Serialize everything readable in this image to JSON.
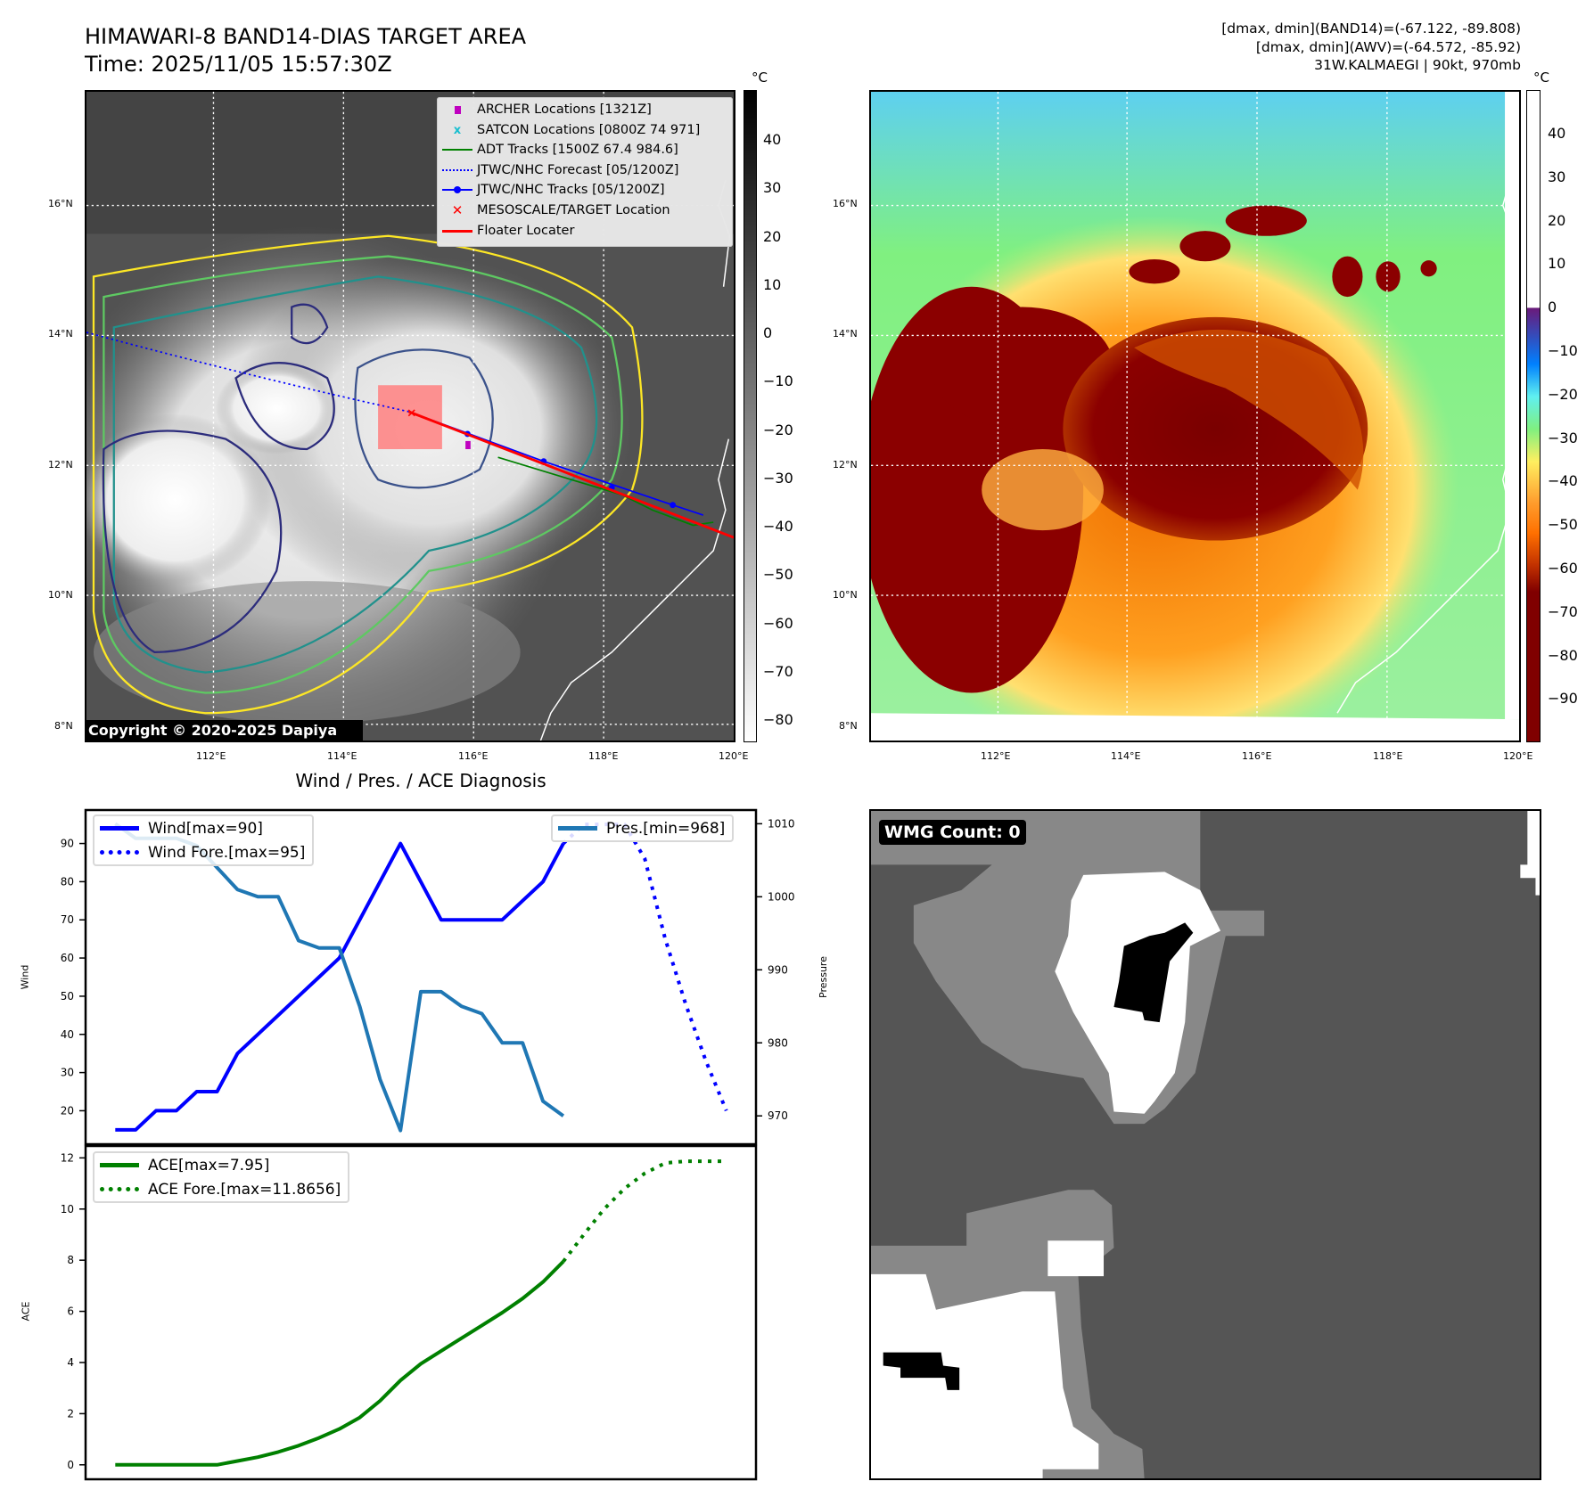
{
  "header": {
    "title": "HIMAWARI-8 BAND14-DIAS TARGET AREA",
    "time": "Time: 2025/11/05 15:57:30Z"
  },
  "info": {
    "line1": "[dmax, dmin](BAND14)=(-67.122, -89.808)",
    "line2": "[dmax, dmin](AWV)=(-64.572, -85.92)",
    "line3": "31W.KALMAEGI | 90kt, 970mb"
  },
  "left_map": {
    "legend": [
      {
        "label": "ARCHER Locations [1321Z]",
        "icon": "square-marker",
        "color": "#bf00bf"
      },
      {
        "label": "SATCON Locations [0800Z 74 971]",
        "icon": "x-marker",
        "color": "#17becf"
      },
      {
        "label": "ADT Tracks [1500Z 67.4 984.6]",
        "icon": "line",
        "color": "#008000"
      },
      {
        "label": "JTWC/NHC Forecast [05/1200Z]",
        "icon": "dotted-line",
        "color": "#0000ff"
      },
      {
        "label": "JTWC/NHC Tracks [05/1200Z]",
        "icon": "line-dot",
        "color": "#0000ff"
      },
      {
        "label": "MESOSCALE/TARGET Location",
        "icon": "x-marker",
        "color": "#ff0000"
      },
      {
        "label": "Floater Locater",
        "icon": "line",
        "color": "#ff0000"
      }
    ],
    "lat_labels": [
      "16°N",
      "14°N",
      "12°N",
      "10°N",
      "8°N"
    ],
    "lon_labels": [
      "112°E",
      "114°E",
      "116°E",
      "118°E",
      "120°E"
    ],
    "colorbar": {
      "unit": "°C",
      "ticks": [
        "40",
        "30",
        "20",
        "10",
        "0",
        "−10",
        "−20",
        "−30",
        "−40",
        "−50",
        "−60",
        "−70",
        "−80"
      ]
    },
    "copyright": "Copyright © 2020-2025 Dapiya"
  },
  "right_map": {
    "lat_labels": [
      "16°N",
      "14°N",
      "12°N",
      "10°N",
      "8°N"
    ],
    "lon_labels": [
      "112°E",
      "114°E",
      "116°E",
      "118°E",
      "120°E"
    ],
    "colorbar": {
      "unit": "°C",
      "ticks": [
        "40",
        "30",
        "20",
        "10",
        "0",
        "−10",
        "−20",
        "−30",
        "−40",
        "−50",
        "−60",
        "−70",
        "−80",
        "−90"
      ]
    }
  },
  "diagnosis": {
    "title": "Wind / Pres. / ACE Diagnosis"
  },
  "wmg": {
    "label": "WMG Count: 0"
  },
  "chart_data": [
    {
      "type": "line",
      "title": "Wind / Pres. / ACE Diagnosis",
      "ylabel": "Wind",
      "y2label": "Pressure",
      "xlim": [
        -1.5,
        31.5
      ],
      "ylim": [
        11,
        99
      ],
      "y2lim": [
        966,
        1012
      ],
      "yticks": [
        20,
        30,
        40,
        50,
        60,
        70,
        80,
        90
      ],
      "y2ticks": [
        970,
        980,
        990,
        1000,
        1010
      ],
      "legend_left": [
        "Wind[max=90]",
        "Wind Fore.[max=95]"
      ],
      "legend_right": [
        "Pres.[min=968]"
      ],
      "series": [
        {
          "name": "Wind[max=90]",
          "axis": "left",
          "style": "solid",
          "color": "#0000ff",
          "x": [
            0,
            1,
            2,
            3,
            4,
            5,
            6,
            7,
            8,
            9,
            10,
            11,
            12,
            13,
            14,
            15,
            16,
            17,
            18,
            19,
            20,
            21,
            22
          ],
          "values": [
            15,
            15,
            20,
            20,
            25,
            25,
            35,
            40,
            45,
            50,
            55,
            60,
            70,
            80,
            90,
            80,
            70,
            70,
            70,
            70,
            75,
            80,
            90
          ]
        },
        {
          "name": "Wind Fore.[max=95]",
          "axis": "left",
          "style": "dotted",
          "color": "#0000ff",
          "x": [
            22,
            23,
            24,
            25,
            26,
            27,
            28,
            29,
            30
          ],
          "values": [
            90,
            95,
            95,
            95,
            86,
            65,
            48,
            33,
            20
          ]
        },
        {
          "name": "Pres.[min=968]",
          "axis": "right",
          "style": "solid",
          "color": "#1f77b4",
          "x": [
            0,
            1,
            2,
            3,
            4,
            5,
            6,
            7,
            8,
            9,
            10,
            11,
            12,
            13,
            14,
            15,
            16,
            17,
            18,
            19,
            20,
            21,
            22
          ],
          "values": [
            1010,
            1008,
            1008,
            1008,
            1007,
            1004,
            1001,
            1000,
            1000,
            994,
            993,
            993,
            985,
            975,
            968,
            987,
            987,
            985,
            984,
            980,
            980,
            972,
            970
          ]
        }
      ]
    },
    {
      "type": "line",
      "ylabel": "ACE",
      "xlim": [
        -1.5,
        31.5
      ],
      "ylim": [
        -0.6,
        12.5
      ],
      "yticks": [
        0,
        2,
        4,
        6,
        8,
        10,
        12
      ],
      "legend": [
        "ACE[max=7.95]",
        "ACE Fore.[max=11.8656]"
      ],
      "series": [
        {
          "name": "ACE[max=7.95]",
          "style": "solid",
          "color": "#008000",
          "x": [
            0,
            1,
            2,
            3,
            4,
            5,
            6,
            7,
            8,
            9,
            10,
            11,
            12,
            13,
            14,
            15,
            16,
            17,
            18,
            19,
            20,
            21,
            22
          ],
          "values": [
            0,
            0,
            0,
            0,
            0,
            0,
            0.15,
            0.3,
            0.5,
            0.75,
            1.05,
            1.4,
            1.85,
            2.5,
            3.3,
            3.95,
            4.45,
            4.95,
            5.45,
            5.95,
            6.5,
            7.15,
            7.95
          ]
        },
        {
          "name": "ACE Fore.[max=11.8656]",
          "style": "dotted",
          "color": "#008000",
          "x": [
            22,
            23,
            24,
            25,
            26,
            27,
            28,
            29,
            30
          ],
          "values": [
            7.95,
            9.0,
            10.0,
            10.8,
            11.4,
            11.8,
            11.87,
            11.87,
            11.87
          ]
        }
      ]
    }
  ]
}
